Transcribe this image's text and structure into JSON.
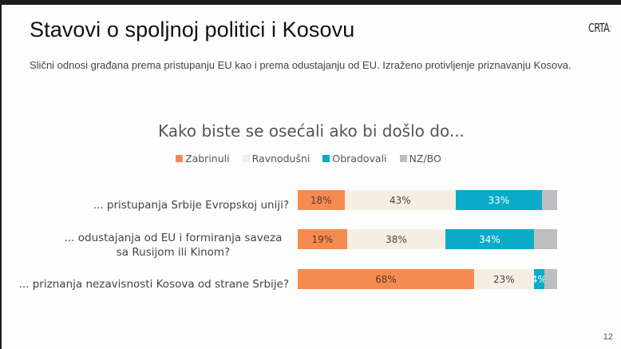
{
  "slide": {
    "title": "Stavovi o spoljnoj politici i Kosovu",
    "logo": {
      "text": "CRTA",
      "accent": ":"
    },
    "subtitle": "Slični odnosi građana prema pristupanju EU kao i prema odustajanju od EU. Izraženo protivljenje priznavanju Kosova.",
    "page_number": "12"
  },
  "colors": {
    "zabrinuli": "#f68b52",
    "ravnodusni": "#f4efe2",
    "obradovali": "#0aabc9",
    "nzbo": "#bdbcbf"
  },
  "legend": [
    {
      "label": "Zabrinuli",
      "color": "#f68b52"
    },
    {
      "label": "Ravnodušni",
      "color": "#f4efe2"
    },
    {
      "label": "Obradovali",
      "color": "#0aabc9"
    },
    {
      "label": "NZ/BO",
      "color": "#bdbcbf"
    }
  ],
  "chart_data": {
    "type": "bar",
    "orientation": "horizontal",
    "stacked": true,
    "title": "Kako biste se osećali ako bi došlo do...",
    "categories": [
      "... pristupanja Srbije Evropskoj uniji?",
      "... odustajanja od EU i formiranja saveza sa Rusijom ili Kinom?",
      "... priznanja nezavisnosti Kosova od strane Srbije?"
    ],
    "series": [
      {
        "name": "Zabrinuli",
        "values": [
          18,
          19,
          68
        ]
      },
      {
        "name": "Ravnodušni",
        "values": [
          43,
          38,
          23
        ]
      },
      {
        "name": "Obradovali",
        "values": [
          33,
          34,
          4
        ]
      },
      {
        "name": "NZ/BO",
        "values": [
          6,
          9,
          5
        ]
      }
    ],
    "labels": [
      [
        "18%",
        "43%",
        "33%",
        ""
      ],
      [
        "19%",
        "38%",
        "34%",
        ""
      ],
      [
        "68%",
        "23%",
        "4%",
        ""
      ]
    ],
    "legend_position": "top",
    "xlim": [
      0,
      100
    ],
    "grid": false
  }
}
